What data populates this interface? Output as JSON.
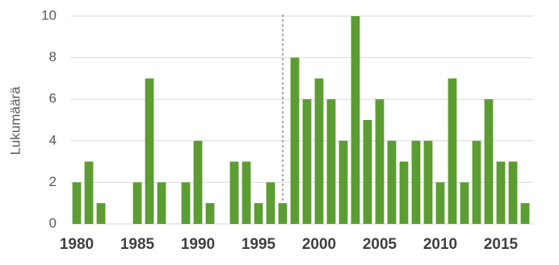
{
  "chart_data": {
    "type": "bar",
    "y_label": "Lukumäärä",
    "x": [
      1980,
      1981,
      1982,
      1983,
      1984,
      1985,
      1986,
      1987,
      1988,
      1989,
      1990,
      1991,
      1992,
      1993,
      1994,
      1995,
      1996,
      1997,
      1998,
      1999,
      2000,
      2001,
      2002,
      2003,
      2004,
      2005,
      2006,
      2007,
      2008,
      2009,
      2010,
      2011,
      2012,
      2013,
      2014,
      2015,
      2016,
      2017
    ],
    "values": [
      2,
      3,
      1,
      0,
      0,
      2,
      7,
      2,
      0,
      2,
      4,
      1,
      0,
      3,
      3,
      1,
      2,
      1,
      8,
      6,
      7,
      6,
      4,
      10,
      5,
      6,
      4,
      3,
      4,
      4,
      2,
      7,
      2,
      4,
      6,
      3,
      3,
      1
    ],
    "color": "#5b9d32",
    "xlim": [
      1979.5,
      2017.5
    ],
    "xticks": [
      1980,
      1985,
      1990,
      1995,
      2000,
      2005,
      2010,
      2015
    ],
    "ylim": [
      0,
      10
    ],
    "yticks": [
      0,
      2,
      4,
      6,
      8,
      10
    ],
    "grid": true,
    "reference_line_x": 1997
  }
}
